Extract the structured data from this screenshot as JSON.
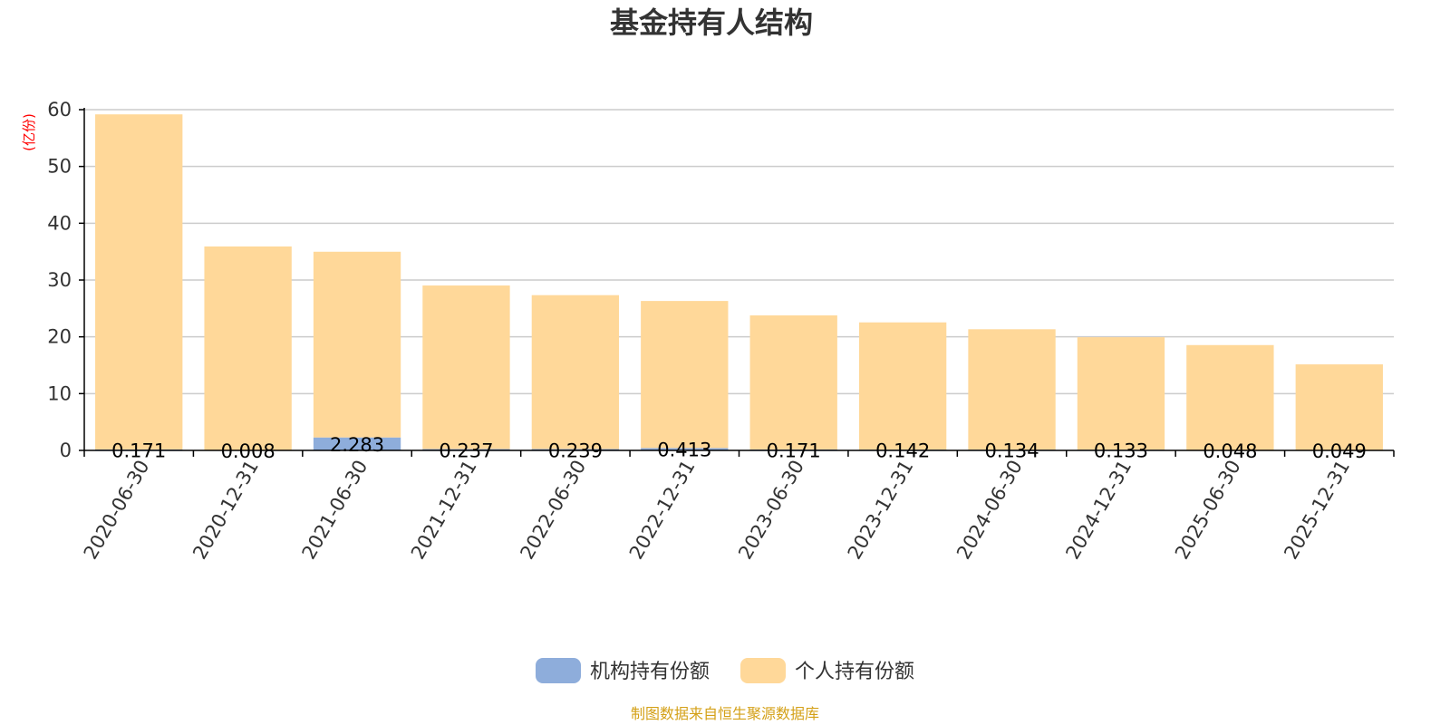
{
  "chart_data": {
    "type": "bar",
    "stacked": true,
    "title": "基金持有人结构",
    "unit_label": "(亿份)",
    "categories": [
      "2020-06-30",
      "2020-12-31",
      "2021-06-30",
      "2021-12-31",
      "2022-06-30",
      "2022-12-31",
      "2023-06-30",
      "2023-12-31",
      "2024-06-30",
      "2024-12-31",
      "2025-06-30",
      "2025-12-31"
    ],
    "series": [
      {
        "name": "机构持有份额",
        "color": "#8eaddb",
        "values": [
          0.171,
          0.008,
          2.283,
          0.237,
          0.239,
          0.413,
          0.171,
          0.142,
          0.134,
          0.133,
          0.048,
          0.049
        ],
        "labels": [
          "0.171",
          "0.008",
          "2.283",
          "0.237",
          "0.239",
          "0.413",
          "0.171",
          "0.142",
          "0.134",
          "0.133",
          "0.048",
          "0.049"
        ]
      },
      {
        "name": "个人持有份额",
        "color": "#ffd899",
        "values": [
          59.0,
          35.9,
          32.7,
          28.8,
          27.1,
          25.9,
          23.6,
          22.4,
          21.2,
          19.8,
          18.5,
          15.1
        ]
      }
    ],
    "ylim": [
      0,
      60
    ],
    "yticks": [
      0,
      10,
      20,
      30,
      40,
      50,
      60
    ],
    "grid": true,
    "legend_position": "bottom-center",
    "source_note": "制图数据来自恒生聚源数据库",
    "colors": {
      "title": "#333333",
      "axis": "#000000",
      "grid": "#cccccc",
      "unit_label": "#ff0000",
      "source_note": "#d4a017"
    }
  }
}
